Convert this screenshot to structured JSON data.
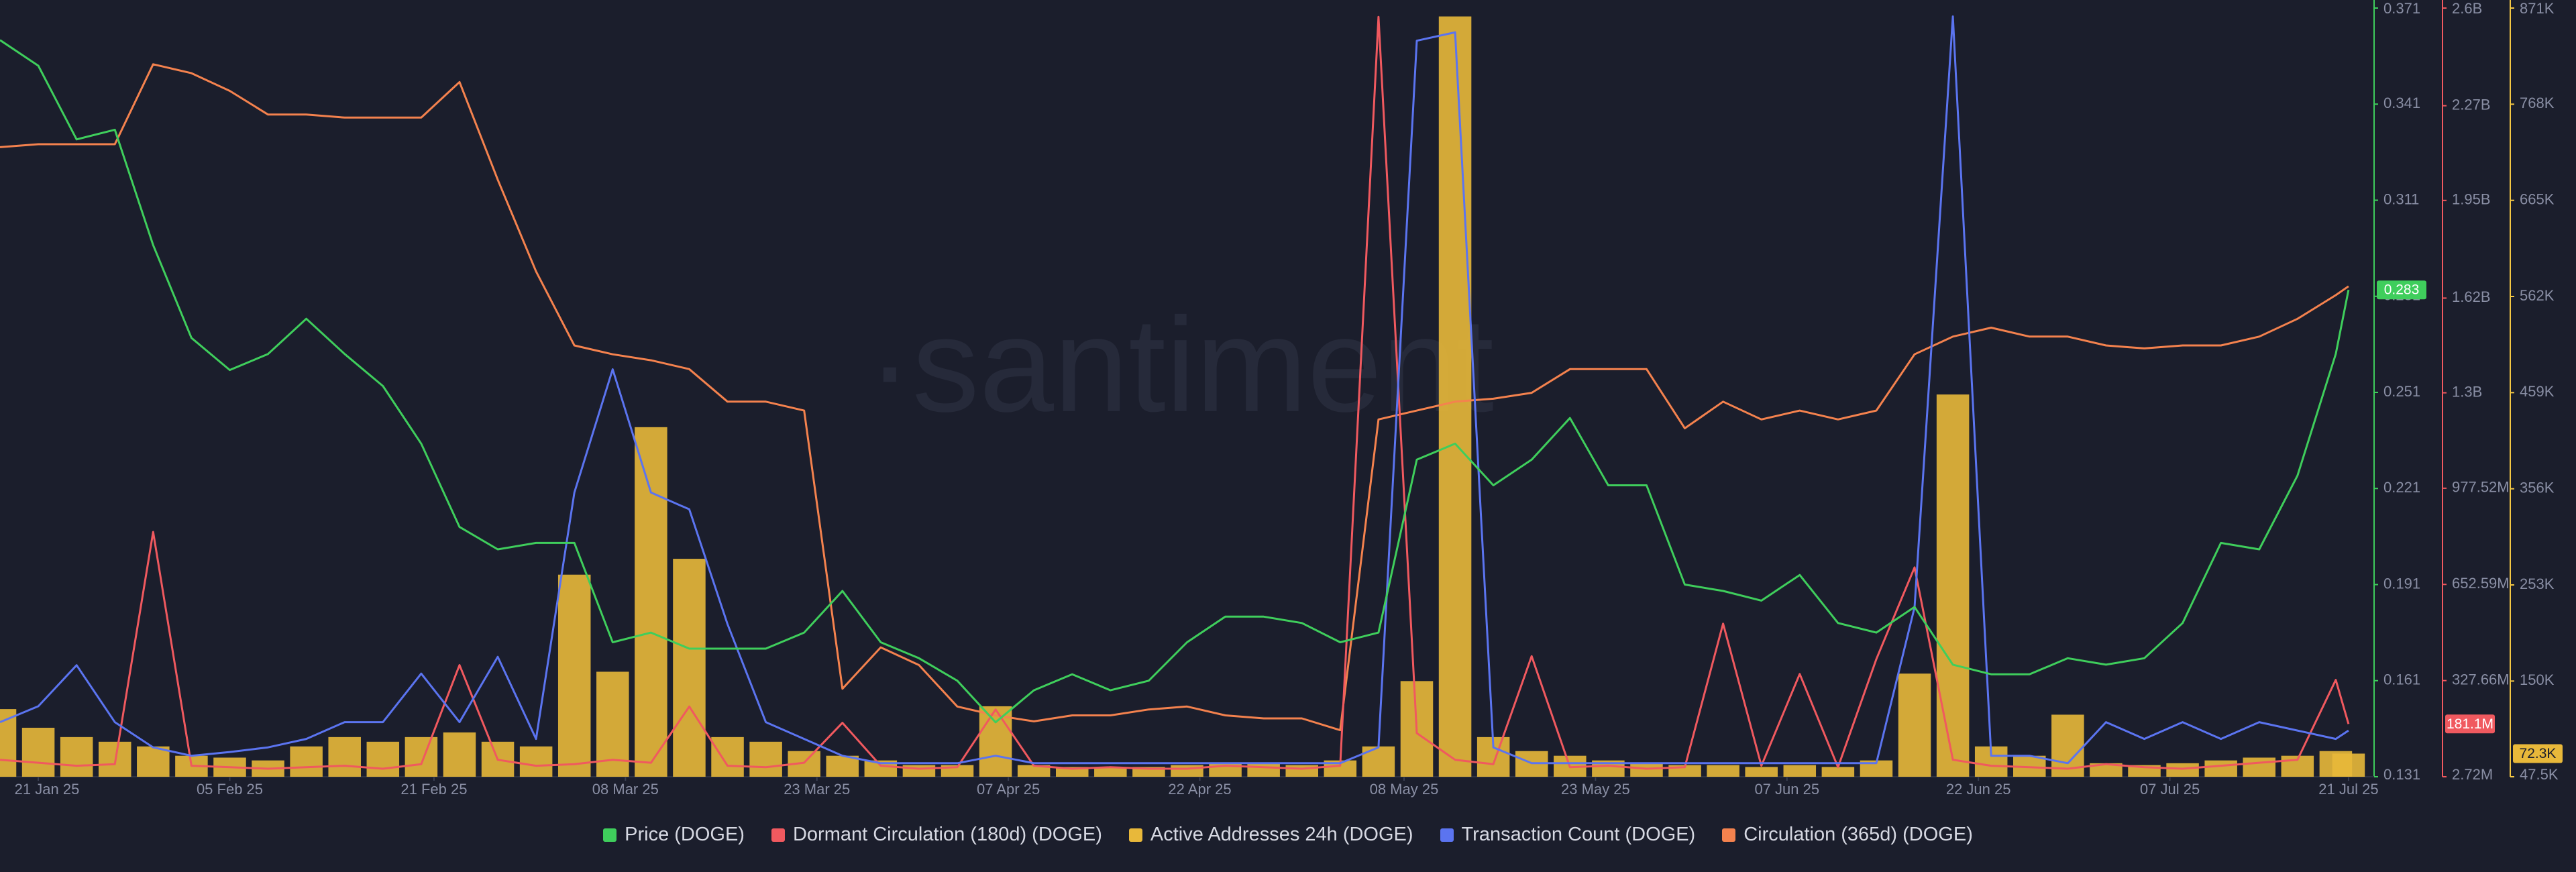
{
  "chart_data": {
    "type": "multi-axis",
    "watermark": "·santiment",
    "x": [
      "2025-01-18",
      "2025-01-21",
      "2025-01-24",
      "2025-01-27",
      "2025-01-30",
      "2025-02-02",
      "2025-02-05",
      "2025-02-08",
      "2025-02-11",
      "2025-02-14",
      "2025-02-17",
      "2025-02-20",
      "2025-02-23",
      "2025-02-26",
      "2025-03-01",
      "2025-03-04",
      "2025-03-07",
      "2025-03-10",
      "2025-03-13",
      "2025-03-16",
      "2025-03-19",
      "2025-03-22",
      "2025-03-25",
      "2025-03-28",
      "2025-03-31",
      "2025-04-03",
      "2025-04-06",
      "2025-04-09",
      "2025-04-12",
      "2025-04-15",
      "2025-04-18",
      "2025-04-21",
      "2025-04-24",
      "2025-04-27",
      "2025-04-30",
      "2025-05-03",
      "2025-05-06",
      "2025-05-09",
      "2025-05-12",
      "2025-05-15",
      "2025-05-18",
      "2025-05-21",
      "2025-05-24",
      "2025-05-27",
      "2025-05-30",
      "2025-06-02",
      "2025-06-05",
      "2025-06-08",
      "2025-06-11",
      "2025-06-14",
      "2025-06-17",
      "2025-06-20",
      "2025-06-23",
      "2025-06-26",
      "2025-06-29",
      "2025-07-02",
      "2025-07-05",
      "2025-07-08",
      "2025-07-11",
      "2025-07-14",
      "2025-07-17",
      "2025-07-20",
      "2025-07-21"
    ],
    "xlim": [
      "2025-01-18",
      "2025-07-23"
    ],
    "xticks": [
      {
        "value": "2025-01-21",
        "label": "21 Jan 25"
      },
      {
        "value": "2025-02-05",
        "label": "05 Feb 25"
      },
      {
        "value": "2025-02-21",
        "label": "21 Feb 25"
      },
      {
        "value": "2025-03-08",
        "label": "08 Mar 25"
      },
      {
        "value": "2025-03-23",
        "label": "23 Mar 25"
      },
      {
        "value": "2025-04-07",
        "label": "07 Apr 25"
      },
      {
        "value": "2025-04-22",
        "label": "22 Apr 25"
      },
      {
        "value": "2025-05-08",
        "label": "08 May 25"
      },
      {
        "value": "2025-05-23",
        "label": "23 May 25"
      },
      {
        "value": "2025-06-07",
        "label": "07 Jun 25"
      },
      {
        "value": "2025-06-22",
        "label": "22 Jun 25"
      },
      {
        "value": "2025-07-07",
        "label": "07 Jul 25"
      },
      {
        "value": "2025-07-21",
        "label": "21 Jul 25"
      }
    ],
    "ylim": [
      0.131,
      0.371
    ],
    "yticks": [
      0.131,
      0.161,
      0.191,
      0.221,
      0.251,
      0.281,
      0.311,
      0.341,
      0.371
    ],
    "ycolor": "#3fce5c",
    "y2lim": [
      2720000,
      2600000000
    ],
    "y2ticks": [
      {
        "value": 2720000,
        "label": "2.72M"
      },
      {
        "value": 327660000,
        "label": "327.66M"
      },
      {
        "value": 652590000,
        "label": "652.59M"
      },
      {
        "value": 977520000,
        "label": "977.52M"
      },
      {
        "value": 1300000000,
        "label": "1.3B"
      },
      {
        "value": 1620000000,
        "label": "1.62B"
      },
      {
        "value": 1950000000,
        "label": "1.95B"
      },
      {
        "value": 2270000000,
        "label": "2.27B"
      },
      {
        "value": 2600000000,
        "label": "2.6B"
      }
    ],
    "y2color": "#f0595f",
    "y3lim": [
      47500,
      871000
    ],
    "y3ticks": [
      {
        "value": 47500,
        "label": "47.5K"
      },
      {
        "value": 150000,
        "label": "150K"
      },
      {
        "value": 253000,
        "label": "253K"
      },
      {
        "value": 356000,
        "label": "356K"
      },
      {
        "value": 459000,
        "label": "459K"
      },
      {
        "value": 562000,
        "label": "562K"
      },
      {
        "value": 665000,
        "label": "665K"
      },
      {
        "value": 768000,
        "label": "768K"
      },
      {
        "value": 871000,
        "label": "871K"
      }
    ],
    "y3color": "#f3c744",
    "series": [
      {
        "name": "Price (DOGE)",
        "type": "line",
        "axis": "y",
        "color": "#3fce5c",
        "badge": true,
        "values": [
          0.361,
          0.353,
          0.33,
          0.333,
          0.297,
          0.268,
          0.258,
          0.263,
          0.274,
          0.263,
          0.253,
          0.235,
          0.209,
          0.202,
          0.204,
          0.204,
          0.173,
          0.176,
          0.171,
          0.171,
          0.171,
          0.176,
          0.189,
          0.173,
          0.168,
          0.161,
          0.148,
          0.158,
          0.163,
          0.158,
          0.161,
          0.173,
          0.181,
          0.181,
          0.179,
          0.173,
          0.176,
          0.23,
          0.235,
          0.222,
          0.23,
          0.243,
          0.222,
          0.222,
          0.191,
          0.189,
          0.186,
          0.194,
          0.179,
          0.176,
          0.184,
          0.166,
          0.163,
          0.163,
          0.168,
          0.166,
          0.168,
          0.179,
          0.204,
          0.202,
          0.225,
          0.263,
          0.283
        ]
      },
      {
        "name": "Dormant Circulation (180d) (DOGE)",
        "type": "line",
        "axis": "y2",
        "color": "#f0595f",
        "badge": true,
        "last_label": "181.1M",
        "values": [
          60000000,
          50000000,
          40000000,
          45000000,
          830000000,
          40000000,
          35000000,
          30000000,
          35000000,
          40000000,
          30000000,
          45000000,
          380000000,
          60000000,
          40000000,
          45000000,
          60000000,
          50000000,
          240000000,
          40000000,
          35000000,
          50000000,
          185000000,
          40000000,
          30000000,
          35000000,
          230000000,
          40000000,
          30000000,
          35000000,
          30000000,
          30000000,
          40000000,
          35000000,
          30000000,
          40000000,
          2570000000,
          150000000,
          60000000,
          45000000,
          410000000,
          35000000,
          40000000,
          30000000,
          35000000,
          520000000,
          40000000,
          350000000,
          35000000,
          400000000,
          710000000,
          60000000,
          40000000,
          35000000,
          30000000,
          45000000,
          35000000,
          30000000,
          40000000,
          50000000,
          60000000,
          330000000,
          181100000
        ]
      },
      {
        "name": "Active Addresses 24h (DOGE)",
        "type": "bar",
        "axis": "y3",
        "color": "#e8b83a",
        "badge": true,
        "last_label": "72.3K",
        "values": [
          120000,
          100000,
          90000,
          85000,
          80000,
          70000,
          68000,
          65000,
          80000,
          90000,
          85000,
          90000,
          95000,
          85000,
          80000,
          264000,
          160000,
          422000,
          281000,
          90000,
          85000,
          75000,
          70000,
          65000,
          60000,
          60000,
          123000,
          60000,
          58000,
          57000,
          58000,
          60000,
          62000,
          62000,
          60000,
          65000,
          80000,
          150000,
          862000,
          90000,
          75000,
          70000,
          65000,
          62000,
          60000,
          60000,
          58000,
          60000,
          58000,
          65000,
          158000,
          457000,
          80000,
          70000,
          114000,
          62000,
          60000,
          62000,
          65000,
          68000,
          70000,
          75000,
          72300
        ]
      },
      {
        "name": "Transaction Count (DOGE)",
        "type": "line",
        "axis": "y3",
        "color": "#5b74f0",
        "values": [
          106000,
          123000,
          167000,
          106000,
          79000,
          70000,
          74000,
          79000,
          88000,
          106000,
          106000,
          158000,
          106000,
          176000,
          88000,
          352000,
          484000,
          352000,
          334000,
          211000,
          106000,
          88000,
          70000,
          62000,
          62000,
          62000,
          70000,
          62000,
          62000,
          62000,
          62000,
          62000,
          62000,
          62000,
          62000,
          62000,
          79000,
          836000,
          845000,
          79000,
          62000,
          62000,
          62000,
          62000,
          62000,
          62000,
          62000,
          62000,
          62000,
          62000,
          229000,
          862000,
          70000,
          70000,
          62000,
          106000,
          88000,
          106000,
          88000,
          106000,
          97000,
          88000,
          97000
        ]
      },
      {
        "name": "Circulation (365d) (DOGE)",
        "type": "line",
        "axis": "y2",
        "color": "#f4824e",
        "values": [
          2130000000,
          2140000000,
          2140000000,
          2140000000,
          2410000000,
          2380000000,
          2320000000,
          2240000000,
          2240000000,
          2230000000,
          2230000000,
          2230000000,
          2350000000,
          2020000000,
          1710000000,
          1460000000,
          1430000000,
          1410000000,
          1380000000,
          1270000000,
          1270000000,
          1240000000,
          300000000,
          440000000,
          380000000,
          240000000,
          210000000,
          190000000,
          210000000,
          210000000,
          230000000,
          240000000,
          210000000,
          200000000,
          200000000,
          160000000,
          1210000000,
          1240000000,
          1270000000,
          1280000000,
          1300000000,
          1380000000,
          1380000000,
          1380000000,
          1180000000,
          1270000000,
          1210000000,
          1240000000,
          1210000000,
          1240000000,
          1430000000,
          1490000000,
          1520000000,
          1490000000,
          1490000000,
          1460000000,
          1450000000,
          1460000000,
          1460000000,
          1490000000,
          1550000000,
          1630000000,
          1660000000
        ]
      }
    ]
  }
}
